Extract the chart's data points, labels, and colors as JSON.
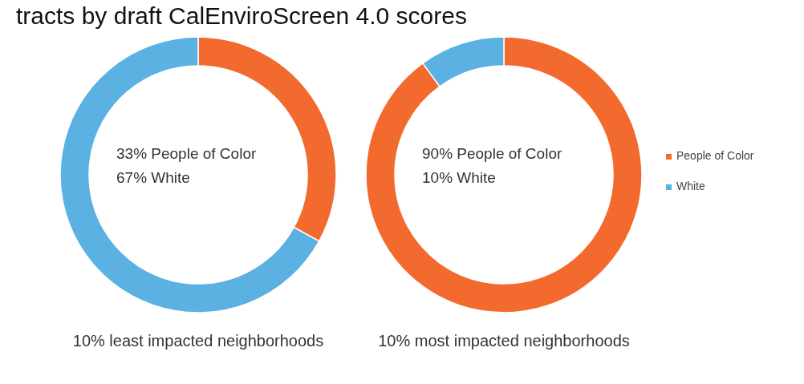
{
  "chart_data": [
    {
      "type": "donut",
      "title": "tracts by draft CalEnviroScreen 4.0 scores",
      "categories": [
        null,
        null
      ],
      "values": [
        33,
        67
      ],
      "colors": [
        "#f26a2e",
        "#5cb1e3"
      ],
      "annotations": [
        "33% People of Color",
        "67% White",
        "10% least impacted neighborhoods"
      ],
      "legend": false
    },
    {
      "type": "donut",
      "categories": [
        "People of Color",
        "White"
      ],
      "values": [
        90,
        10
      ],
      "colors": [
        "#f26a2e",
        "#5cb1e3"
      ],
      "annotations": [
        "90% People of Color",
        "10% White",
        "10% most impacted neighborhoods"
      ],
      "legend": "right"
    }
  ]
}
